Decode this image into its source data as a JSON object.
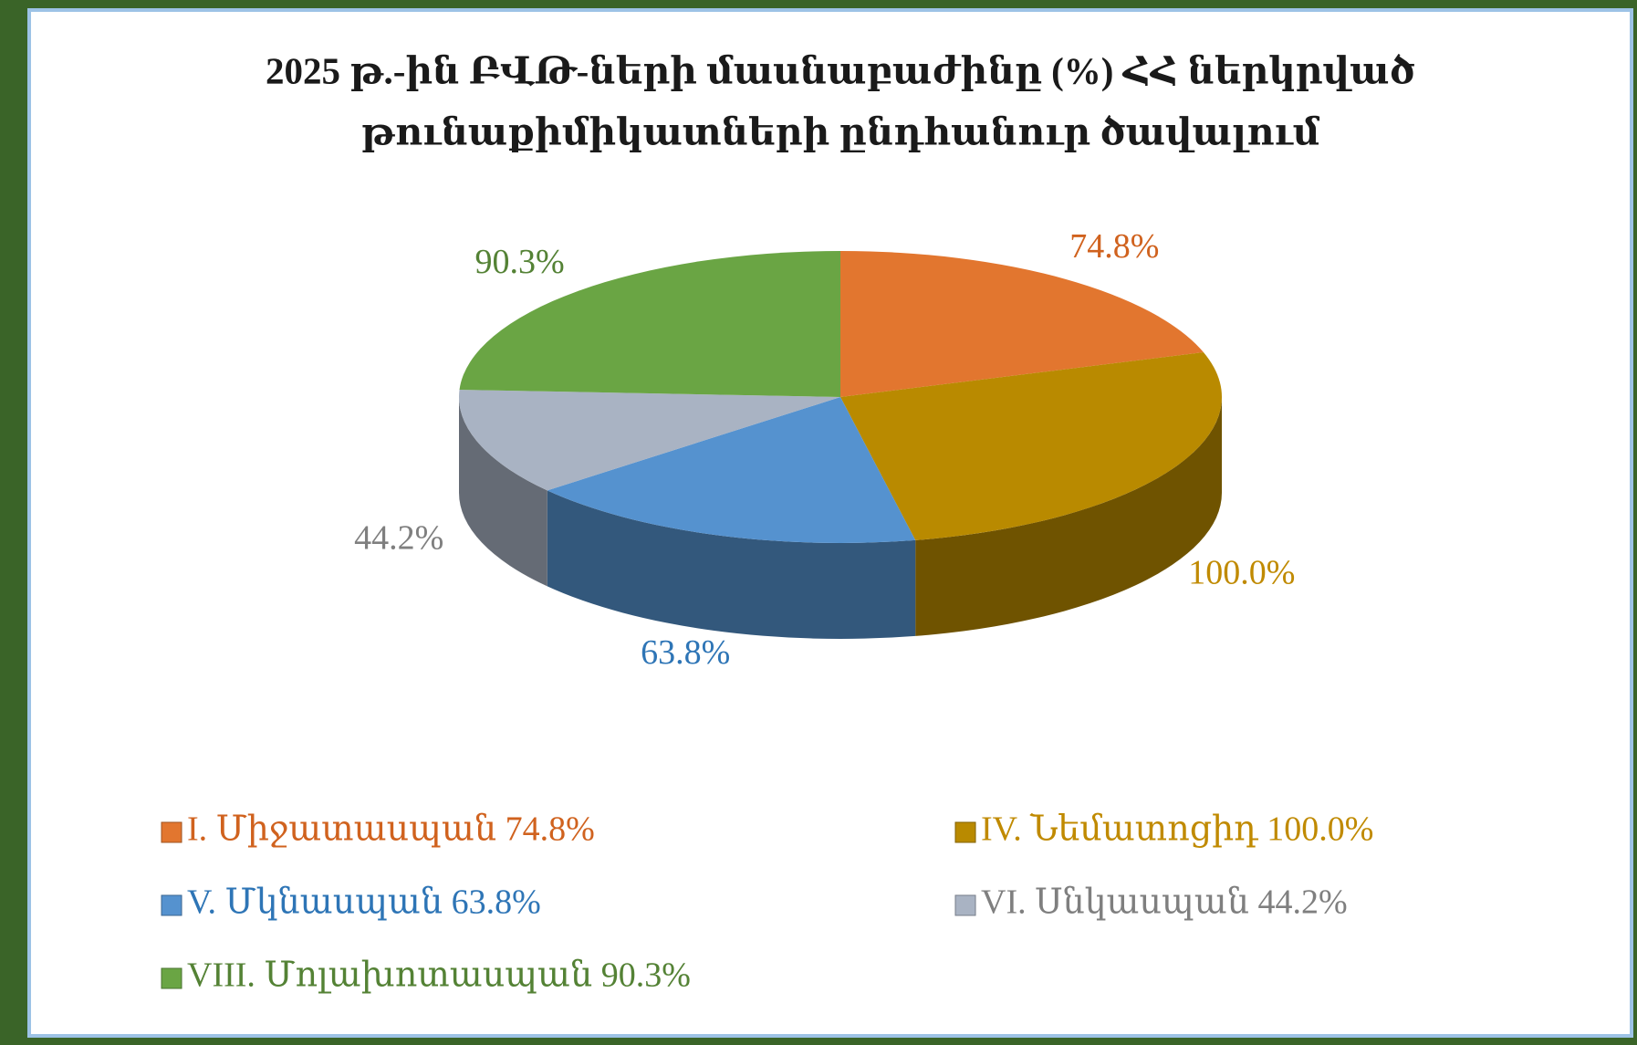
{
  "chart_data": {
    "type": "pie",
    "title": [
      "2025 թ.-ին ԲՎԹ-ների մասնաբաժինը (%) ՀՀ ներկրված",
      "թունաքիմիկատների ընդհանուր ծավալում"
    ],
    "categories": [
      "I. Միջատասպան 74.8%",
      "IV. Նեմատոցիդ 100.0%",
      "V. Մկնասպան 63.8%",
      "VI. Սնկասպան 44.2%",
      "VIII. Մոլախոտասպան 90.3%"
    ],
    "values": [
      74.8,
      100.0,
      63.8,
      44.2,
      90.3
    ],
    "value_labels": [
      "74.8%",
      "100.0%",
      "63.8%",
      "44.2%",
      "90.3%"
    ],
    "colors": [
      "#e2762f",
      "#b98a00",
      "#5592cf",
      "#a9b3c3",
      "#6aa544"
    ],
    "label_colors": [
      "#d0621e",
      "#c08a00",
      "#2e75b6",
      "#7f7f7f",
      "#548235"
    ],
    "legend": "bottom"
  }
}
